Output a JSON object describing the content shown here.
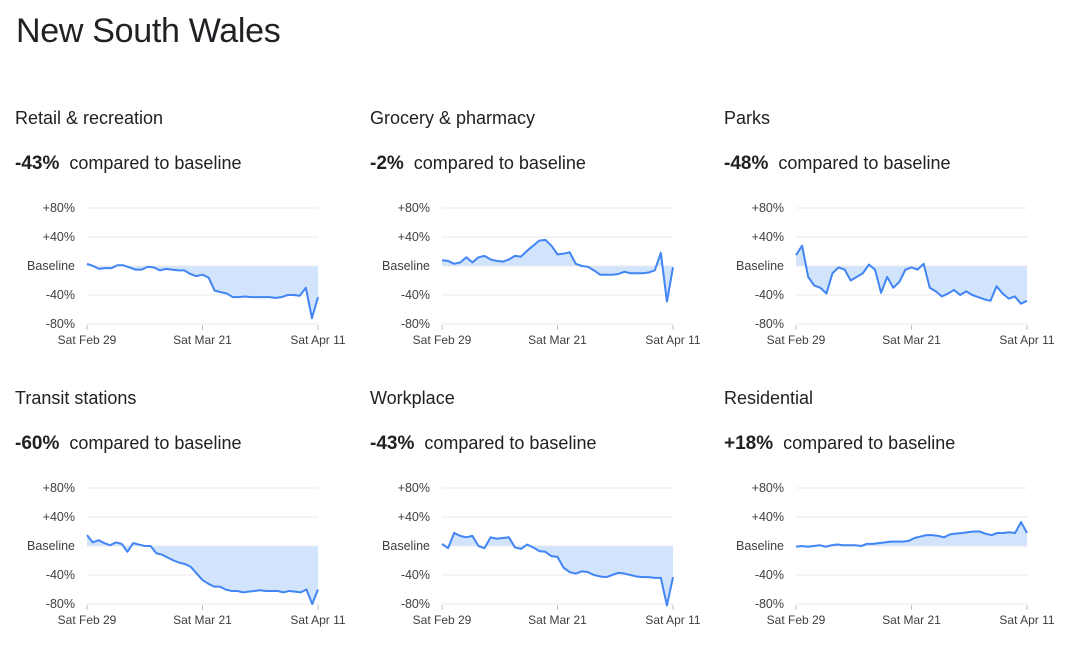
{
  "page": {
    "title": "New South Wales"
  },
  "colors": {
    "line": "#4285f4",
    "fill": "#d2e3fc",
    "grid": "#e8eaed",
    "axis": "#bdc1c6"
  },
  "chart_data": [
    {
      "type": "area",
      "title": "Retail & recreation",
      "headline_value": "-43%",
      "headline_text": "compared to baseline",
      "ylim": [
        -80,
        80
      ],
      "yticks": [
        "+80%",
        "+40%",
        "Baseline",
        "-40%",
        "-80%"
      ],
      "xticks": [
        "Sat Feb 29",
        "Sat Mar 21",
        "Sat Apr 11"
      ],
      "x_start": "2020-02-15",
      "x_end": "2020-04-11",
      "grid": true,
      "series": [
        {
          "values": [
            3,
            0,
            -4,
            -3,
            -3,
            1,
            1,
            -2,
            -5,
            -5,
            -1,
            -2,
            -6,
            -4,
            -5,
            -6,
            -6,
            -11,
            -14,
            -12,
            -16,
            -34,
            -36,
            -38,
            -43,
            -43,
            -42,
            -43,
            -43,
            -43,
            -43,
            -44,
            -43,
            -40,
            -40,
            -41,
            -30,
            -72,
            -43
          ]
        }
      ]
    },
    {
      "type": "area",
      "title": "Grocery & pharmacy",
      "headline_value": "-2%",
      "headline_text": "compared to baseline",
      "ylim": [
        -80,
        80
      ],
      "yticks": [
        "+80%",
        "+40%",
        "Baseline",
        "-40%",
        "-80%"
      ],
      "xticks": [
        "Sat Feb 29",
        "Sat Mar 21",
        "Sat Apr 11"
      ],
      "x_start": "2020-02-15",
      "x_end": "2020-04-11",
      "grid": true,
      "series": [
        {
          "values": [
            8,
            7,
            3,
            5,
            12,
            5,
            12,
            14,
            9,
            7,
            6,
            9,
            14,
            13,
            21,
            28,
            35,
            36,
            28,
            16,
            17,
            19,
            3,
            0,
            -1,
            -6,
            -12,
            -12,
            -12,
            -11,
            -8,
            -10,
            -10,
            -10,
            -9,
            -6,
            18,
            -49,
            -2
          ]
        }
      ]
    },
    {
      "type": "area",
      "title": "Parks",
      "headline_value": "-48%",
      "headline_text": "compared to baseline",
      "ylim": [
        -80,
        80
      ],
      "yticks": [
        "+80%",
        "+40%",
        "Baseline",
        "-40%",
        "-80%"
      ],
      "xticks": [
        "Sat Feb 29",
        "Sat Mar 21",
        "Sat Apr 11"
      ],
      "x_start": "2020-02-15",
      "x_end": "2020-04-11",
      "grid": true,
      "series": [
        {
          "values": [
            15,
            28,
            -15,
            -27,
            -30,
            -38,
            -10,
            -2,
            -5,
            -20,
            -15,
            -10,
            2,
            -5,
            -37,
            -15,
            -30,
            -22,
            -5,
            -2,
            -5,
            3,
            -30,
            -35,
            -42,
            -38,
            -33,
            -40,
            -35,
            -40,
            -43,
            -46,
            -48,
            -28,
            -38,
            -45,
            -42,
            -52,
            -48
          ]
        }
      ]
    },
    {
      "type": "area",
      "title": "Transit stations",
      "headline_value": "-60%",
      "headline_text": "compared to baseline",
      "ylim": [
        -80,
        80
      ],
      "yticks": [
        "+80%",
        "+40%",
        "Baseline",
        "-40%",
        "-80%"
      ],
      "xticks": [
        "Sat Feb 29",
        "Sat Mar 21",
        "Sat Apr 11"
      ],
      "x_start": "2020-02-15",
      "x_end": "2020-04-11",
      "grid": true,
      "series": [
        {
          "values": [
            15,
            5,
            8,
            4,
            1,
            5,
            3,
            -8,
            4,
            2,
            0,
            0,
            -10,
            -12,
            -16,
            -20,
            -23,
            -25,
            -29,
            -38,
            -47,
            -52,
            -56,
            -56,
            -60,
            -62,
            -62,
            -64,
            -63,
            -62,
            -61,
            -62,
            -62,
            -62,
            -64,
            -62,
            -63,
            -64,
            -60,
            -80,
            -60
          ]
        }
      ]
    },
    {
      "type": "area",
      "title": "Workplace",
      "headline_value": "-43%",
      "headline_text": "compared to baseline",
      "ylim": [
        -80,
        80
      ],
      "yticks": [
        "+80%",
        "+40%",
        "Baseline",
        "-40%",
        "-80%"
      ],
      "xticks": [
        "Sat Feb 29",
        "Sat Mar 21",
        "Sat Apr 11"
      ],
      "x_start": "2020-02-15",
      "x_end": "2020-04-11",
      "grid": true,
      "series": [
        {
          "values": [
            3,
            -3,
            18,
            14,
            12,
            14,
            0,
            -3,
            12,
            10,
            11,
            12,
            -2,
            -4,
            2,
            -2,
            -7,
            -8,
            -14,
            -15,
            -30,
            -36,
            -38,
            -35,
            -36,
            -40,
            -42,
            -43,
            -40,
            -37,
            -38,
            -40,
            -42,
            -43,
            -43,
            -44,
            -44,
            -82,
            -43
          ]
        }
      ]
    },
    {
      "type": "area",
      "title": "Residential",
      "headline_value": "+18%",
      "headline_text": "compared to baseline",
      "ylim": [
        -80,
        80
      ],
      "yticks": [
        "+80%",
        "+40%",
        "Baseline",
        "-40%",
        "-80%"
      ],
      "xticks": [
        "Sat Feb 29",
        "Sat Mar 21",
        "Sat Apr 11"
      ],
      "x_start": "2020-02-15",
      "x_end": "2020-04-11",
      "grid": true,
      "series": [
        {
          "values": [
            -1,
            0,
            -1,
            0,
            1,
            -1,
            1,
            2,
            1,
            1,
            1,
            0,
            3,
            3,
            4,
            5,
            6,
            6,
            6,
            7,
            11,
            13,
            15,
            15,
            14,
            12,
            16,
            17,
            18,
            19,
            20,
            20,
            17,
            15,
            18,
            18,
            19,
            18,
            33,
            18
          ]
        }
      ]
    }
  ]
}
